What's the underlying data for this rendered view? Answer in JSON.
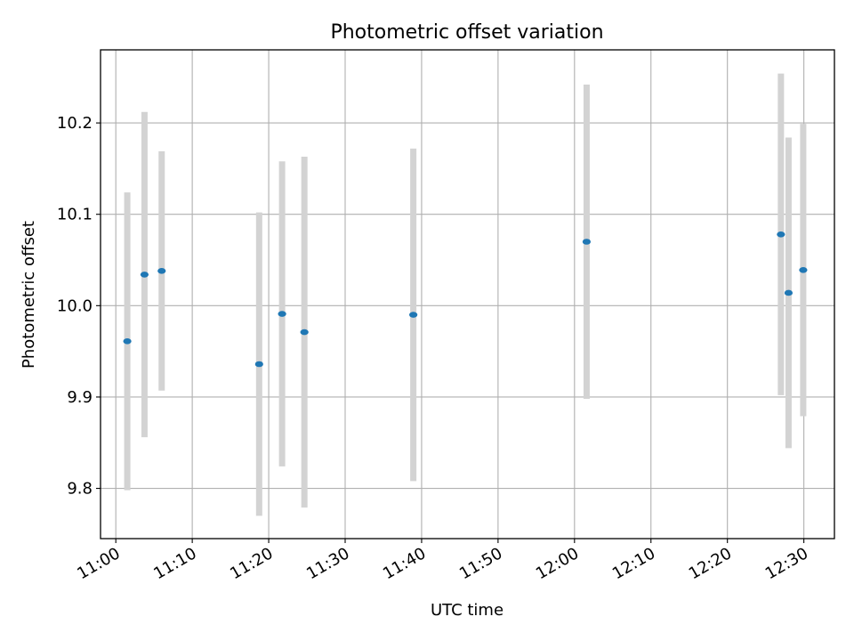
{
  "chart_data": {
    "type": "scatter",
    "title": "Photometric offset variation",
    "xlabel": "UTC time",
    "ylabel": "Photometric offset",
    "xlim": [
      "10:58",
      "12:34"
    ],
    "ylim": [
      9.745,
      10.28
    ],
    "x_ticks": [
      "11:00",
      "11:10",
      "11:20",
      "11:30",
      "11:40",
      "11:50",
      "12:00",
      "12:10",
      "12:20",
      "12:30"
    ],
    "y_ticks": [
      9.8,
      9.9,
      10.0,
      10.1,
      10.2
    ],
    "y_tick_labels": [
      "9.8",
      "9.9",
      "10.0",
      "10.1",
      "10.2"
    ],
    "grid": true,
    "marker_color": "#1f77b4",
    "errorbar_color": "#d3d3d3",
    "points": [
      {
        "time": "11:01:30",
        "y": 9.961,
        "err": 0.163
      },
      {
        "time": "11:03:45",
        "y": 10.034,
        "err": 0.178
      },
      {
        "time": "11:06:00",
        "y": 10.038,
        "err": 0.131
      },
      {
        "time": "11:18:45",
        "y": 9.936,
        "err": 0.166
      },
      {
        "time": "11:21:45",
        "y": 9.991,
        "err": 0.167
      },
      {
        "time": "11:24:40",
        "y": 9.971,
        "err": 0.192
      },
      {
        "time": "11:38:55",
        "y": 9.99,
        "err": 0.182
      },
      {
        "time": "12:01:35",
        "y": 10.07,
        "err": 0.172
      },
      {
        "time": "12:27:00",
        "y": 10.078,
        "err": 0.176
      },
      {
        "time": "12:28:00",
        "y": 10.014,
        "err": 0.17
      },
      {
        "time": "12:29:55",
        "y": 10.039,
        "err": 0.16
      }
    ]
  }
}
